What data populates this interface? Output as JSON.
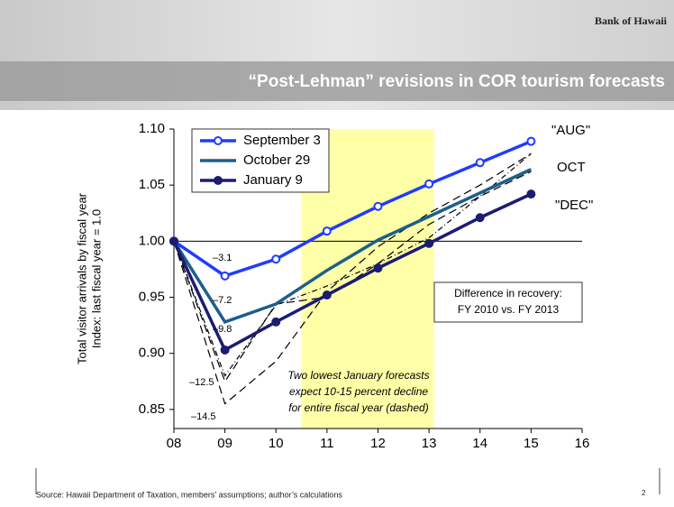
{
  "header": {
    "logo": "Bank of Hawaii",
    "title": "“Post-Lehman” revisions in COR tourism forecasts"
  },
  "chart_data": {
    "type": "line",
    "y_label": [
      "Total visitor arrivals by fiscal year",
      "Index:  last fiscal year = 1.0"
    ],
    "x": [
      8,
      9,
      10,
      11,
      12,
      13,
      14,
      15
    ],
    "xlim": [
      8,
      16
    ],
    "xticks": [
      {
        "value": 8,
        "label": "08"
      },
      {
        "value": 9,
        "label": "09"
      },
      10,
      11,
      12,
      13,
      14,
      15,
      16
    ],
    "ylim": [
      0.833,
      1.1
    ],
    "yticks": [
      {
        "value": 1.1,
        "label": "1.10"
      },
      1.05,
      {
        "value": 1,
        "label": "1.00"
      },
      0.95,
      {
        "value": 0.9,
        "label": "0.90"
      },
      0.85
    ],
    "reference_line": 1,
    "highlight": [
      10.5,
      13.1
    ],
    "highlight_color": "#ffffa8",
    "series": [
      {
        "name": "September 3",
        "color": "#1e3cff",
        "marker": "open",
        "values": [
          1,
          0.969,
          0.984,
          1.009,
          1.031,
          1.051,
          1.07,
          1.089
        ]
      },
      {
        "name": "October 29",
        "color": "#1d5f8c",
        "marker": "none",
        "values": [
          1,
          0.928,
          0.944,
          0.974,
          1.001,
          1.022,
          1.043,
          1.064
        ]
      },
      {
        "name": "January 9",
        "color": "#1c1c72",
        "marker": "filled",
        "values": [
          1,
          0.903,
          0.928,
          0.952,
          0.976,
          0.998,
          1.021,
          1.042
        ]
      },
      {
        "color": "#000000",
        "dash": "9,5",
        "values": [
          1,
          0.855,
          0.893,
          0.955,
          0.995,
          1.025,
          1.05,
          1.078
        ]
      },
      {
        "color": "#000000",
        "dash": "9,5",
        "values": [
          1,
          0.875,
          0.944,
          0.95,
          0.98,
          1.015,
          1.04,
          1.062
        ]
      },
      {
        "color": "#000000",
        "dash": "6,3,1,3",
        "values": [
          1,
          0.88,
          0.943,
          0.96,
          0.98,
          1.003,
          1.04,
          1.078
        ]
      }
    ],
    "annotations": [
      "–3.1",
      "–7.2",
      "–9.8",
      "–12.5",
      "–14.5",
      "\"AUG\"",
      "OCT",
      "\"DEC\""
    ],
    "box_note": [
      "Difference in recovery:",
      "FY 2010 vs. FY 2013"
    ],
    "italic_note": [
      "Two lowest January forecasts",
      "expect 10-15 percent decline",
      "for entire fiscal year (dashed)"
    ]
  },
  "footer": {
    "source": "Source:  Hawaii Department of Taxation, members’ assumptions; author’s calculations",
    "page": "2"
  }
}
